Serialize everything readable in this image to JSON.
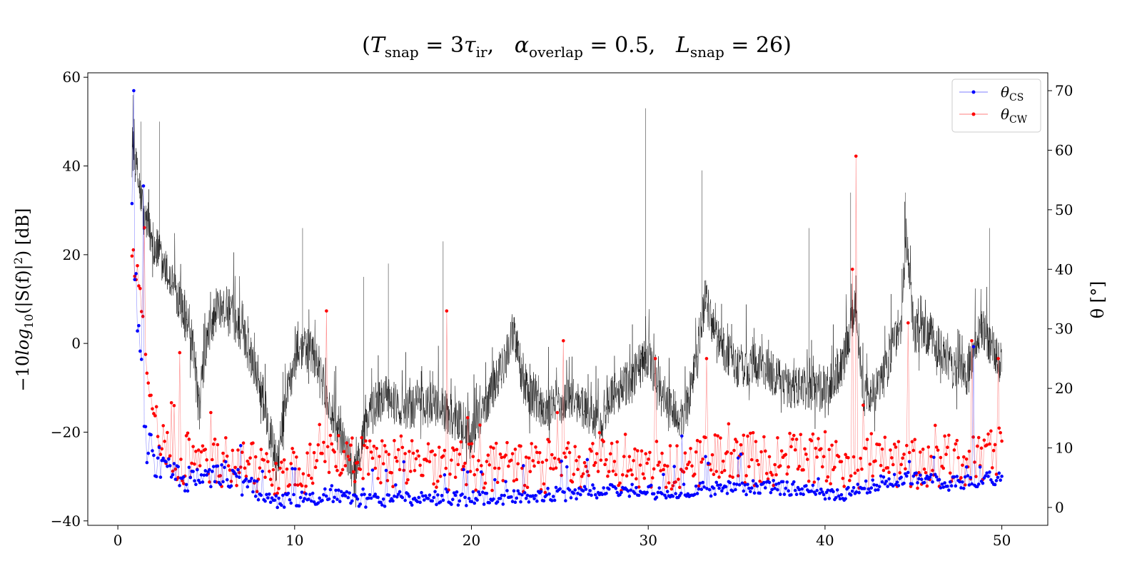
{
  "chart_data": {
    "type": "line",
    "title": {
      "prefix": "(",
      "t_main": "T",
      "t_sub": "snap",
      "t_eq": " = 3",
      "tau_main": "τ",
      "tau_sub": "ir",
      "comma1": ",   ",
      "a_main": "α",
      "a_sub": "overlap",
      "a_eq": " = 0.5,   ",
      "l_main": "L",
      "l_sub": "snap",
      "l_eq": " = 26)"
    },
    "ylabel_left": {
      "pre": "−10",
      "log": "log",
      "log_sub": "10",
      "post": "(|S(f)|",
      "sup": "2",
      "tail": ") [dB]"
    },
    "ylabel_right": "θ [°]",
    "xlim": [
      -1.7,
      52.6
    ],
    "ylim_left": [
      -41,
      61
    ],
    "ylim_right": [
      -3,
      73
    ],
    "xticks": [
      0,
      10,
      20,
      30,
      40,
      50
    ],
    "xtick_labels": [
      "0",
      "10",
      "20",
      "30",
      "40",
      "50"
    ],
    "yticks_left": [
      -40,
      -20,
      0,
      20,
      40,
      60
    ],
    "ytick_labels_left": [
      "−40",
      "−20",
      "0",
      "20",
      "40",
      "60"
    ],
    "yticks_right": [
      0,
      10,
      20,
      30,
      40,
      50,
      60,
      70
    ],
    "ytick_labels_right": [
      "0",
      "10",
      "20",
      "30",
      "40",
      "50",
      "60",
      "70"
    ],
    "grid": false,
    "legend_position": "top-right",
    "spectrum": {
      "x_range": [
        0.8,
        50.0
      ],
      "axis": "left",
      "color": "#000000",
      "profile": [
        [
          0.8,
          45
        ],
        [
          1.5,
          28
        ],
        [
          2.5,
          18
        ],
        [
          3.5,
          10
        ],
        [
          4.2,
          0
        ],
        [
          4.6,
          -15
        ],
        [
          5.0,
          0
        ],
        [
          5.6,
          8
        ],
        [
          6.2,
          8
        ],
        [
          7.0,
          3
        ],
        [
          8.0,
          -8
        ],
        [
          8.6,
          -20
        ],
        [
          9.0,
          -28
        ],
        [
          9.5,
          -12
        ],
        [
          10.2,
          -1
        ],
        [
          11.0,
          -2
        ],
        [
          12.0,
          -15
        ],
        [
          13.0,
          -25
        ],
        [
          13.4,
          -30
        ],
        [
          14.0,
          -18
        ],
        [
          15.0,
          -12
        ],
        [
          16.5,
          -15
        ],
        [
          17.5,
          -13
        ],
        [
          18.5,
          -15
        ],
        [
          20.0,
          -20
        ],
        [
          21.0,
          -12
        ],
        [
          22.0,
          -3
        ],
        [
          22.4,
          3
        ],
        [
          23.0,
          -10
        ],
        [
          24.0,
          -15
        ],
        [
          25.0,
          -14
        ],
        [
          25.6,
          -12
        ],
        [
          26.5,
          -15
        ],
        [
          27.3,
          -18
        ],
        [
          28.0,
          -12
        ],
        [
          29.0,
          -8
        ],
        [
          30.0,
          -3
        ],
        [
          31.0,
          -13
        ],
        [
          32.0,
          -18
        ],
        [
          32.8,
          -3
        ],
        [
          33.2,
          10
        ],
        [
          34.0,
          0
        ],
        [
          35.0,
          -5
        ],
        [
          36.5,
          -5
        ],
        [
          38.0,
          -10
        ],
        [
          40.0,
          -10
        ],
        [
          41.0,
          -5
        ],
        [
          41.7,
          8
        ],
        [
          42.2,
          -12
        ],
        [
          43.0,
          -10
        ],
        [
          44.3,
          5
        ],
        [
          44.6,
          25
        ],
        [
          45.0,
          3
        ],
        [
          46.0,
          2
        ],
        [
          47.0,
          -5
        ],
        [
          48.0,
          -7
        ],
        [
          48.8,
          4
        ],
        [
          50.0,
          -5
        ]
      ],
      "noise_dB": 5,
      "spikes": [
        {
          "x": 0.85,
          "y": 56
        },
        {
          "x": 1.3,
          "y": 50
        },
        {
          "x": 2.35,
          "y": 50
        },
        {
          "x": 10.45,
          "y": 26
        },
        {
          "x": 13.9,
          "y": 15
        },
        {
          "x": 15.3,
          "y": 18
        },
        {
          "x": 18.4,
          "y": 23
        },
        {
          "x": 29.85,
          "y": 53
        },
        {
          "x": 33.05,
          "y": 39
        },
        {
          "x": 39.1,
          "y": 26
        },
        {
          "x": 41.45,
          "y": 34
        },
        {
          "x": 44.55,
          "y": 34
        },
        {
          "x": 49.3,
          "y": 26
        }
      ]
    },
    "series": [
      {
        "name_main": "θ",
        "name_sub": "CS",
        "color": "#0000ff",
        "axis": "right",
        "baseline_points": [
          [
            0.8,
            48
          ],
          [
            1.0,
            35
          ],
          [
            1.3,
            25
          ],
          [
            1.6,
            12
          ],
          [
            2.0,
            7
          ],
          [
            3.0,
            6
          ],
          [
            4.0,
            4
          ],
          [
            6.0,
            6
          ],
          [
            7.5,
            3
          ],
          [
            9.0,
            1
          ],
          [
            12.0,
            2
          ],
          [
            14.0,
            1
          ],
          [
            16.0,
            1.5
          ],
          [
            20.0,
            1.5
          ],
          [
            24.0,
            2
          ],
          [
            28.0,
            3
          ],
          [
            30.0,
            2.5
          ],
          [
            33.0,
            3
          ],
          [
            37.0,
            3.5
          ],
          [
            41.0,
            2
          ],
          [
            43.0,
            4
          ],
          [
            45.0,
            5
          ],
          [
            47.0,
            4
          ],
          [
            50.0,
            5
          ]
        ],
        "spikes": [
          {
            "x": 0.9,
            "y": 70
          },
          {
            "x": 1.45,
            "y": 54
          },
          {
            "x": 31.9,
            "y": 12
          },
          {
            "x": 48.4,
            "y": 27
          }
        ]
      },
      {
        "name_main": "θ",
        "name_sub": "CW",
        "color": "#ff0000",
        "axis": "right",
        "baseline_points": [
          [
            0.8,
            42
          ],
          [
            1.2,
            38
          ],
          [
            1.8,
            18
          ],
          [
            2.5,
            10
          ],
          [
            4.0,
            8
          ],
          [
            7.0,
            7
          ],
          [
            9.0,
            5
          ],
          [
            12.0,
            8
          ],
          [
            15.0,
            8
          ],
          [
            20.0,
            7
          ],
          [
            25.0,
            7
          ],
          [
            30.0,
            7
          ],
          [
            35.0,
            8
          ],
          [
            40.0,
            8
          ],
          [
            45.0,
            7
          ],
          [
            50.0,
            9
          ]
        ],
        "spikes": [
          {
            "x": 1.5,
            "y": 47
          },
          {
            "x": 3.5,
            "y": 26
          },
          {
            "x": 11.8,
            "y": 33
          },
          {
            "x": 18.6,
            "y": 33
          },
          {
            "x": 25.2,
            "y": 28
          },
          {
            "x": 30.4,
            "y": 25
          },
          {
            "x": 33.3,
            "y": 25
          },
          {
            "x": 41.55,
            "y": 40
          },
          {
            "x": 41.75,
            "y": 59
          },
          {
            "x": 44.7,
            "y": 31
          },
          {
            "x": 48.3,
            "y": 28
          },
          {
            "x": 49.8,
            "y": 25
          }
        ]
      }
    ]
  }
}
